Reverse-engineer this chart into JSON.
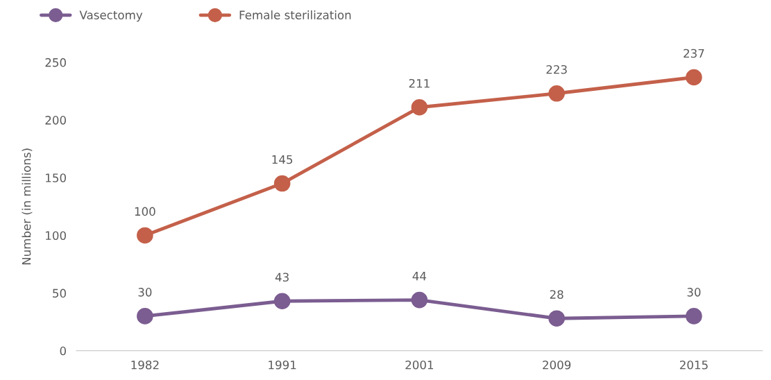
{
  "chart_data": {
    "type": "line",
    "ylabel": "Number (in millions)",
    "categories": [
      "1982",
      "1991",
      "2001",
      "2009",
      "2015"
    ],
    "series": [
      {
        "name": "Vasectomy",
        "color": "#7b5d91",
        "values": [
          30,
          43,
          44,
          28,
          30
        ]
      },
      {
        "name": "Female sterilization",
        "color": "#c4604a",
        "values": [
          100,
          145,
          211,
          223,
          237
        ]
      }
    ],
    "ylim": [
      0,
      250
    ],
    "yticks": [
      0,
      50,
      100,
      150,
      200,
      250
    ],
    "grid": false,
    "legend": "top left",
    "marker": "circle",
    "line_style": "solid",
    "data_labels": true
  }
}
